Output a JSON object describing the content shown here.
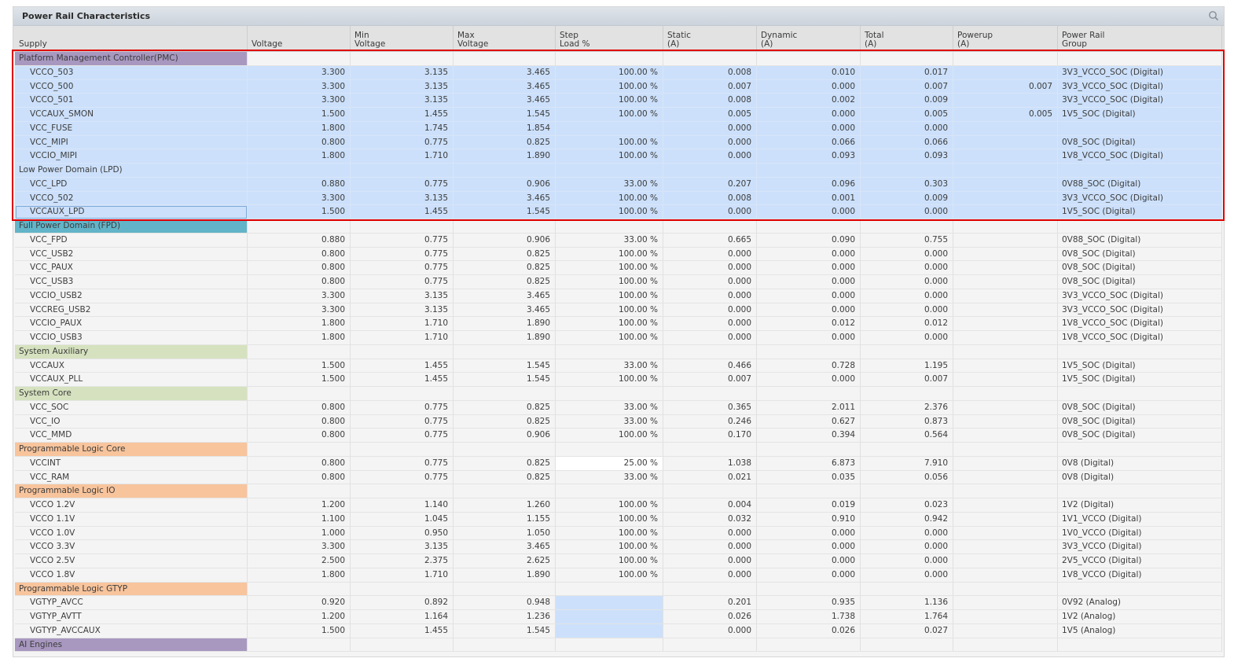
{
  "panel": {
    "title": "Power Rail Characteristics",
    "search_icon": "search-icon"
  },
  "columns": [
    {
      "l1": "Supply",
      "l2": ""
    },
    {
      "l1": "Voltage",
      "l2": ""
    },
    {
      "l1": "Min",
      "l2": "Voltage"
    },
    {
      "l1": "Max",
      "l2": "Voltage"
    },
    {
      "l1": "Step",
      "l2": "Load %"
    },
    {
      "l1": "Static",
      "l2": "(A)"
    },
    {
      "l1": "Dynamic",
      "l2": "(A)"
    },
    {
      "l1": "Total",
      "l2": "(A)"
    },
    {
      "l1": "Powerup",
      "l2": "(A)"
    },
    {
      "l1": "Power Rail",
      "l2": "Group"
    }
  ],
  "colors": {
    "selection": "#cce0fb",
    "highlight_box": "#e00000",
    "group_pmc": "#a898c0",
    "group_fpd": "#62b4c8",
    "group_sys": "#d6e2bf",
    "group_pl": "#f8c49c",
    "group_aie": "#a898c0"
  },
  "rows": [
    {
      "type": "group",
      "label": "Platform Management Controller(PMC)",
      "color": "#a898c0",
      "selected": false
    },
    {
      "type": "rail",
      "supply": "VCCO_503",
      "voltage": "3.300",
      "min": "3.135",
      "max": "3.465",
      "step": "100.00 %",
      "static": "0.008",
      "dynamic": "0.010",
      "total": "0.017",
      "powerup": "",
      "group": "3V3_VCCO_SOC (Digital)",
      "selected": true
    },
    {
      "type": "rail",
      "supply": "VCCO_500",
      "voltage": "3.300",
      "min": "3.135",
      "max": "3.465",
      "step": "100.00 %",
      "static": "0.007",
      "dynamic": "0.000",
      "total": "0.007",
      "powerup": "0.007",
      "group": "3V3_VCCO_SOC (Digital)",
      "selected": true
    },
    {
      "type": "rail",
      "supply": "VCCO_501",
      "voltage": "3.300",
      "min": "3.135",
      "max": "3.465",
      "step": "100.00 %",
      "static": "0.008",
      "dynamic": "0.002",
      "total": "0.009",
      "powerup": "",
      "group": "3V3_VCCO_SOC (Digital)",
      "selected": true
    },
    {
      "type": "rail",
      "supply": "VCCAUX_SMON",
      "voltage": "1.500",
      "min": "1.455",
      "max": "1.545",
      "step": "100.00 %",
      "static": "0.005",
      "dynamic": "0.000",
      "total": "0.005",
      "powerup": "0.005",
      "group": "1V5_SOC (Digital)",
      "selected": true
    },
    {
      "type": "rail",
      "supply": "VCC_FUSE",
      "voltage": "1.800",
      "min": "1.745",
      "max": "1.854",
      "step": "",
      "static": "0.000",
      "dynamic": "0.000",
      "total": "0.000",
      "powerup": "",
      "group": "",
      "selected": true
    },
    {
      "type": "rail",
      "supply": "VCC_MIPI",
      "voltage": "0.800",
      "min": "0.775",
      "max": "0.825",
      "step": "100.00 %",
      "static": "0.000",
      "dynamic": "0.066",
      "total": "0.066",
      "powerup": "",
      "group": "0V8_SOC (Digital)",
      "selected": true
    },
    {
      "type": "rail",
      "supply": "VCCIO_MIPI",
      "voltage": "1.800",
      "min": "1.710",
      "max": "1.890",
      "step": "100.00 %",
      "static": "0.000",
      "dynamic": "0.093",
      "total": "0.093",
      "powerup": "",
      "group": "1V8_VCCO_SOC (Digital)",
      "selected": true
    },
    {
      "type": "group",
      "label": "Low Power Domain (LPD)",
      "color": "",
      "selected": true
    },
    {
      "type": "rail",
      "supply": "VCC_LPD",
      "voltage": "0.880",
      "min": "0.775",
      "max": "0.906",
      "step": "33.00 %",
      "static": "0.207",
      "dynamic": "0.096",
      "total": "0.303",
      "powerup": "",
      "group": "0V88_SOC (Digital)",
      "selected": true
    },
    {
      "type": "rail",
      "supply": "VCCO_502",
      "voltage": "3.300",
      "min": "3.135",
      "max": "3.465",
      "step": "100.00 %",
      "static": "0.008",
      "dynamic": "0.001",
      "total": "0.009",
      "powerup": "",
      "group": "3V3_VCCO_SOC (Digital)",
      "selected": true
    },
    {
      "type": "rail",
      "supply": "VCCAUX_LPD",
      "voltage": "1.500",
      "min": "1.455",
      "max": "1.545",
      "step": "100.00 %",
      "static": "0.000",
      "dynamic": "0.000",
      "total": "0.000",
      "powerup": "",
      "group": "1V5_SOC (Digital)",
      "selected": true,
      "focused": true
    },
    {
      "type": "group",
      "label": "Full Power Domain (FPD)",
      "color": "#62b4c8",
      "selected": false
    },
    {
      "type": "rail",
      "supply": "VCC_FPD",
      "voltage": "0.880",
      "min": "0.775",
      "max": "0.906",
      "step": "33.00 %",
      "static": "0.665",
      "dynamic": "0.090",
      "total": "0.755",
      "powerup": "",
      "group": "0V88_SOC (Digital)"
    },
    {
      "type": "rail",
      "supply": "VCC_USB2",
      "voltage": "0.800",
      "min": "0.775",
      "max": "0.825",
      "step": "100.00 %",
      "static": "0.000",
      "dynamic": "0.000",
      "total": "0.000",
      "powerup": "",
      "group": "0V8_SOC (Digital)"
    },
    {
      "type": "rail",
      "supply": "VCC_PAUX",
      "voltage": "0.800",
      "min": "0.775",
      "max": "0.825",
      "step": "100.00 %",
      "static": "0.000",
      "dynamic": "0.000",
      "total": "0.000",
      "powerup": "",
      "group": "0V8_SOC (Digital)"
    },
    {
      "type": "rail",
      "supply": "VCC_USB3",
      "voltage": "0.800",
      "min": "0.775",
      "max": "0.825",
      "step": "100.00 %",
      "static": "0.000",
      "dynamic": "0.000",
      "total": "0.000",
      "powerup": "",
      "group": "0V8_SOC (Digital)"
    },
    {
      "type": "rail",
      "supply": "VCCIO_USB2",
      "voltage": "3.300",
      "min": "3.135",
      "max": "3.465",
      "step": "100.00 %",
      "static": "0.000",
      "dynamic": "0.000",
      "total": "0.000",
      "powerup": "",
      "group": "3V3_VCCO_SOC (Digital)"
    },
    {
      "type": "rail",
      "supply": "VCCREG_USB2",
      "voltage": "3.300",
      "min": "3.135",
      "max": "3.465",
      "step": "100.00 %",
      "static": "0.000",
      "dynamic": "0.000",
      "total": "0.000",
      "powerup": "",
      "group": "3V3_VCCO_SOC (Digital)"
    },
    {
      "type": "rail",
      "supply": "VCCIO_PAUX",
      "voltage": "1.800",
      "min": "1.710",
      "max": "1.890",
      "step": "100.00 %",
      "static": "0.000",
      "dynamic": "0.012",
      "total": "0.012",
      "powerup": "",
      "group": "1V8_VCCO_SOC (Digital)"
    },
    {
      "type": "rail",
      "supply": "VCCIO_USB3",
      "voltage": "1.800",
      "min": "1.710",
      "max": "1.890",
      "step": "100.00 %",
      "static": "0.000",
      "dynamic": "0.000",
      "total": "0.000",
      "powerup": "",
      "group": "1V8_VCCO_SOC (Digital)"
    },
    {
      "type": "group",
      "label": "System Auxiliary",
      "color": "#d6e2bf"
    },
    {
      "type": "rail",
      "supply": "VCCAUX",
      "voltage": "1.500",
      "min": "1.455",
      "max": "1.545",
      "step": "33.00 %",
      "static": "0.466",
      "dynamic": "0.728",
      "total": "1.195",
      "powerup": "",
      "group": "1V5_SOC (Digital)"
    },
    {
      "type": "rail",
      "supply": "VCCAUX_PLL",
      "voltage": "1.500",
      "min": "1.455",
      "max": "1.545",
      "step": "100.00 %",
      "static": "0.007",
      "dynamic": "0.000",
      "total": "0.007",
      "powerup": "",
      "group": "1V5_SOC (Digital)"
    },
    {
      "type": "group",
      "label": "System Core",
      "color": "#d6e2bf"
    },
    {
      "type": "rail",
      "supply": "VCC_SOC",
      "voltage": "0.800",
      "min": "0.775",
      "max": "0.825",
      "step": "33.00 %",
      "static": "0.365",
      "dynamic": "2.011",
      "total": "2.376",
      "powerup": "",
      "group": "0V8_SOC (Digital)"
    },
    {
      "type": "rail",
      "supply": "VCC_IO",
      "voltage": "0.800",
      "min": "0.775",
      "max": "0.825",
      "step": "33.00 %",
      "static": "0.246",
      "dynamic": "0.627",
      "total": "0.873",
      "powerup": "",
      "group": "0V8_SOC (Digital)"
    },
    {
      "type": "rail",
      "supply": "VCC_MMD",
      "voltage": "0.800",
      "min": "0.775",
      "max": "0.906",
      "step": "100.00 %",
      "static": "0.170",
      "dynamic": "0.394",
      "total": "0.564",
      "powerup": "",
      "group": "0V8_SOC (Digital)"
    },
    {
      "type": "group",
      "label": "Programmable Logic Core",
      "color": "#f8c49c"
    },
    {
      "type": "rail",
      "supply": "VCCINT",
      "voltage": "0.800",
      "min": "0.775",
      "max": "0.825",
      "step": "25.00 %",
      "static": "1.038",
      "dynamic": "6.873",
      "total": "7.910",
      "powerup": "",
      "group": "0V8 (Digital)",
      "step_editable": true
    },
    {
      "type": "rail",
      "supply": "VCC_RAM",
      "voltage": "0.800",
      "min": "0.775",
      "max": "0.825",
      "step": "33.00 %",
      "static": "0.021",
      "dynamic": "0.035",
      "total": "0.056",
      "powerup": "",
      "group": "0V8 (Digital)"
    },
    {
      "type": "group",
      "label": "Programmable Logic IO",
      "color": "#f8c49c"
    },
    {
      "type": "rail",
      "supply": "VCCO 1.2V",
      "voltage": "1.200",
      "min": "1.140",
      "max": "1.260",
      "step": "100.00 %",
      "static": "0.004",
      "dynamic": "0.019",
      "total": "0.023",
      "powerup": "",
      "group": "1V2 (Digital)"
    },
    {
      "type": "rail",
      "supply": "VCCO 1.1V",
      "voltage": "1.100",
      "min": "1.045",
      "max": "1.155",
      "step": "100.00 %",
      "static": "0.032",
      "dynamic": "0.910",
      "total": "0.942",
      "powerup": "",
      "group": "1V1_VCCO (Digital)"
    },
    {
      "type": "rail",
      "supply": "VCCO 1.0V",
      "voltage": "1.000",
      "min": "0.950",
      "max": "1.050",
      "step": "100.00 %",
      "static": "0.000",
      "dynamic": "0.000",
      "total": "0.000",
      "powerup": "",
      "group": "1V0_VCCO (Digital)"
    },
    {
      "type": "rail",
      "supply": "VCCO 3.3V",
      "voltage": "3.300",
      "min": "3.135",
      "max": "3.465",
      "step": "100.00 %",
      "static": "0.000",
      "dynamic": "0.000",
      "total": "0.000",
      "powerup": "",
      "group": "3V3_VCCO (Digital)"
    },
    {
      "type": "rail",
      "supply": "VCCO 2.5V",
      "voltage": "2.500",
      "min": "2.375",
      "max": "2.625",
      "step": "100.00 %",
      "static": "0.000",
      "dynamic": "0.000",
      "total": "0.000",
      "powerup": "",
      "group": "2V5_VCCO (Digital)"
    },
    {
      "type": "rail",
      "supply": "VCCO 1.8V",
      "voltage": "1.800",
      "min": "1.710",
      "max": "1.890",
      "step": "100.00 %",
      "static": "0.000",
      "dynamic": "0.000",
      "total": "0.000",
      "powerup": "",
      "group": "1V8_VCCO (Digital)"
    },
    {
      "type": "group",
      "label": "Programmable Logic GTYP",
      "color": "#f8c49c"
    },
    {
      "type": "rail",
      "supply": "VGTYP_AVCC",
      "voltage": "0.920",
      "min": "0.892",
      "max": "0.948",
      "step": "",
      "static": "0.201",
      "dynamic": "0.935",
      "total": "1.136",
      "powerup": "",
      "group": "0V92 (Analog)",
      "step_blue": true
    },
    {
      "type": "rail",
      "supply": "VGTYP_AVTT",
      "voltage": "1.200",
      "min": "1.164",
      "max": "1.236",
      "step": "",
      "static": "0.026",
      "dynamic": "1.738",
      "total": "1.764",
      "powerup": "",
      "group": "1V2 (Analog)",
      "step_blue": true
    },
    {
      "type": "rail",
      "supply": "VGTYP_AVCCAUX",
      "voltage": "1.500",
      "min": "1.455",
      "max": "1.545",
      "step": "",
      "static": "0.000",
      "dynamic": "0.026",
      "total": "0.027",
      "powerup": "",
      "group": "1V5 (Analog)",
      "step_blue": true
    },
    {
      "type": "group",
      "label": "AI Engines",
      "color": "#a898c0"
    }
  ]
}
